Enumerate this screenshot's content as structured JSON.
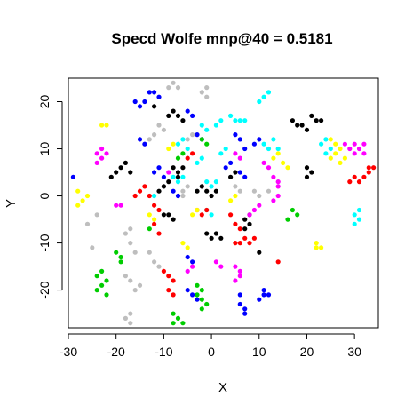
{
  "chart_data": {
    "type": "scatter",
    "title": "Specd Wolfe mnp@40 = 0.5181",
    "xlabel": "X",
    "ylabel": "Y",
    "xlim": [
      -30,
      35
    ],
    "ylim": [
      -28,
      25
    ],
    "xticks": [
      -30,
      -20,
      -10,
      0,
      10,
      20,
      30
    ],
    "yticks": [
      -20,
      -10,
      0,
      10,
      20
    ],
    "xtick_labels": [
      "-30",
      "-20",
      "-10",
      "0",
      "10",
      "20",
      "30"
    ],
    "ytick_labels": [
      "-20",
      "-10",
      "0",
      "10",
      "20"
    ],
    "grid": false,
    "legend": "none",
    "point_shape": "filled-circle",
    "series": [
      {
        "color": "#000000",
        "points": [
          [
            -21,
            4
          ],
          [
            -20,
            5
          ],
          [
            -19,
            6
          ],
          [
            -18,
            7
          ],
          [
            -17,
            5
          ],
          [
            -12,
            19
          ],
          [
            -9,
            17
          ],
          [
            -8,
            18
          ],
          [
            -7,
            17
          ],
          [
            -6,
            16
          ],
          [
            -8,
            6
          ],
          [
            -7,
            5
          ],
          [
            -6,
            6
          ],
          [
            -7,
            4
          ],
          [
            -11,
            1
          ],
          [
            -10,
            2
          ],
          [
            -9,
            3
          ],
          [
            -10,
            -4
          ],
          [
            -9,
            -4
          ],
          [
            -8,
            -5
          ],
          [
            -3,
            1
          ],
          [
            -2,
            2
          ],
          [
            -1,
            1
          ],
          [
            0,
            0
          ],
          [
            1,
            1
          ],
          [
            -1,
            -8
          ],
          [
            0,
            -9
          ],
          [
            1,
            -8
          ],
          [
            2,
            -9
          ],
          [
            4,
            4
          ],
          [
            5,
            5
          ],
          [
            7,
            -5
          ],
          [
            8,
            -4
          ],
          [
            8,
            -6
          ],
          [
            7,
            -7
          ],
          [
            10,
            -12
          ],
          [
            17,
            16
          ],
          [
            18,
            15
          ],
          [
            19,
            15
          ],
          [
            20,
            14
          ],
          [
            21,
            17
          ],
          [
            22,
            16
          ],
          [
            23,
            16
          ],
          [
            20,
            4
          ],
          [
            21,
            5
          ],
          [
            20,
            6
          ]
        ]
      },
      {
        "color": "#BEBEBE",
        "points": [
          [
            -25,
            -11
          ],
          [
            -26,
            -6
          ],
          [
            -24,
            -4
          ],
          [
            -17,
            -7
          ],
          [
            -18,
            -8
          ],
          [
            -17,
            -10
          ],
          [
            -16,
            -12
          ],
          [
            -18,
            -17
          ],
          [
            -17,
            -18
          ],
          [
            -16,
            -20
          ],
          [
            -15,
            -19
          ],
          [
            -17,
            -25
          ],
          [
            -18,
            -26
          ],
          [
            -17,
            -27
          ],
          [
            -9,
            23
          ],
          [
            -8,
            24
          ],
          [
            -7,
            23
          ],
          [
            -2,
            22
          ],
          [
            -1,
            23
          ],
          [
            -1,
            21
          ],
          [
            -11,
            15
          ],
          [
            -12,
            13
          ],
          [
            -10,
            14
          ],
          [
            -14,
            11
          ],
          [
            -13,
            12
          ],
          [
            -5,
            12
          ],
          [
            -4,
            13
          ],
          [
            -6,
            1
          ],
          [
            -5,
            2
          ],
          [
            5,
            2
          ],
          [
            6,
            1
          ],
          [
            -13,
            -12
          ],
          [
            -12,
            -14
          ],
          [
            -11,
            -15
          ],
          [
            -6,
            0
          ],
          [
            9,
            1
          ],
          [
            10,
            0
          ],
          [
            12,
            1
          ]
        ]
      },
      {
        "color": "#0000FF",
        "points": [
          [
            -29,
            4
          ],
          [
            -16,
            20
          ],
          [
            -15,
            19
          ],
          [
            -14,
            20
          ],
          [
            -13,
            22
          ],
          [
            -12,
            22
          ],
          [
            -11,
            21
          ],
          [
            -15,
            12
          ],
          [
            -14,
            11
          ],
          [
            -5,
            18
          ],
          [
            -4,
            17
          ],
          [
            -3,
            13
          ],
          [
            -2,
            12
          ],
          [
            5,
            13
          ],
          [
            6,
            12
          ],
          [
            7,
            10
          ],
          [
            -12,
            5
          ],
          [
            -11,
            6
          ],
          [
            -10,
            4
          ],
          [
            -8,
            1
          ],
          [
            -7,
            0
          ],
          [
            3,
            6
          ],
          [
            4,
            7
          ],
          [
            6,
            5
          ],
          [
            7,
            4
          ],
          [
            -5,
            -13
          ],
          [
            -4,
            -14
          ],
          [
            -5,
            -20
          ],
          [
            -4,
            -21
          ],
          [
            -3,
            -22
          ],
          [
            6,
            -21
          ],
          [
            6,
            -23
          ],
          [
            7,
            -24
          ],
          [
            7,
            -25
          ],
          [
            10,
            -22
          ],
          [
            11,
            -21
          ],
          [
            12,
            -21
          ],
          [
            11,
            -20
          ],
          [
            9,
            11
          ],
          [
            10,
            12
          ]
        ]
      },
      {
        "color": "#00FFFF",
        "points": [
          [
            -7,
            11
          ],
          [
            -6,
            12
          ],
          [
            -5,
            10
          ],
          [
            -2,
            15
          ],
          [
            -1,
            14
          ],
          [
            1,
            15
          ],
          [
            2,
            16
          ],
          [
            4,
            17
          ],
          [
            5,
            16
          ],
          [
            6,
            16
          ],
          [
            7,
            16
          ],
          [
            10,
            20
          ],
          [
            11,
            21
          ],
          [
            12,
            22
          ],
          [
            11,
            11
          ],
          [
            12,
            10
          ],
          [
            13,
            12
          ],
          [
            14,
            10
          ],
          [
            -8,
            4
          ],
          [
            -7,
            3
          ],
          [
            -6,
            4
          ],
          [
            -1,
            3
          ],
          [
            0,
            2
          ],
          [
            1,
            3
          ],
          [
            -1,
            -3
          ],
          [
            0,
            -4
          ],
          [
            -3,
            7
          ],
          [
            -2,
            8
          ],
          [
            2,
            9
          ],
          [
            3,
            10
          ],
          [
            23,
            11
          ],
          [
            24,
            12
          ],
          [
            25,
            10
          ],
          [
            24,
            9
          ],
          [
            30,
            -4
          ],
          [
            31,
            -5
          ],
          [
            30,
            -6
          ],
          [
            31,
            -3
          ],
          [
            -12,
            0
          ]
        ]
      },
      {
        "color": "#00CD00",
        "points": [
          [
            -23,
            -16
          ],
          [
            -24,
            -17
          ],
          [
            -22,
            -18
          ],
          [
            -23,
            -19
          ],
          [
            -24,
            -20
          ],
          [
            -22,
            -21
          ],
          [
            -20,
            -12
          ],
          [
            -19,
            -13
          ],
          [
            -19,
            -14
          ],
          [
            -8,
            -25
          ],
          [
            -7,
            -26
          ],
          [
            -8,
            -27
          ],
          [
            -6,
            -27
          ],
          [
            -3,
            -19
          ],
          [
            -2,
            -20
          ],
          [
            -3,
            -21
          ],
          [
            -2,
            -22
          ],
          [
            -1,
            -23
          ],
          [
            -2,
            -24
          ],
          [
            -2,
            12
          ],
          [
            -1,
            11
          ],
          [
            -7,
            8
          ],
          [
            -6,
            9
          ],
          [
            17,
            -3
          ],
          [
            18,
            -4
          ],
          [
            16,
            -5
          ],
          [
            -13,
            -7
          ]
        ]
      },
      {
        "color": "#FF0000",
        "points": [
          [
            -16,
            0
          ],
          [
            -15,
            1
          ],
          [
            -14,
            2
          ],
          [
            -13,
            0
          ],
          [
            -12,
            -2
          ],
          [
            -11,
            -3
          ],
          [
            -12,
            -6
          ],
          [
            -11,
            -8
          ],
          [
            -10,
            -16
          ],
          [
            -9,
            -17
          ],
          [
            -8,
            -18
          ],
          [
            -9,
            -20
          ],
          [
            -8,
            -21
          ],
          [
            -3,
            -3
          ],
          [
            -2,
            -4
          ],
          [
            -1,
            -3
          ],
          [
            5,
            -6
          ],
          [
            6,
            -7
          ],
          [
            7,
            -9
          ],
          [
            5,
            -10
          ],
          [
            8,
            -10
          ],
          [
            9,
            -9
          ],
          [
            6,
            -10
          ],
          [
            14,
            -14
          ],
          [
            4,
            -4
          ],
          [
            -5,
            8
          ],
          [
            -4,
            9
          ],
          [
            30,
            4
          ],
          [
            31,
            3
          ],
          [
            32,
            4
          ],
          [
            29,
            3
          ],
          [
            33,
            5
          ],
          [
            34,
            6
          ],
          [
            33,
            6
          ]
        ]
      },
      {
        "color": "#FF00FF",
        "points": [
          [
            -23,
            8
          ],
          [
            -24,
            9
          ],
          [
            -23,
            10
          ],
          [
            -22,
            9
          ],
          [
            -24,
            7
          ],
          [
            -20,
            -2
          ],
          [
            -19,
            -2
          ],
          [
            -5,
            -16
          ],
          [
            -4,
            -15
          ],
          [
            1,
            -14
          ],
          [
            2,
            -15
          ],
          [
            5,
            -15
          ],
          [
            6,
            -16
          ],
          [
            6,
            -17
          ],
          [
            5,
            -18
          ],
          [
            9,
            -3
          ],
          [
            10,
            -2
          ],
          [
            8,
            -4
          ],
          [
            13,
            4
          ],
          [
            14,
            3
          ],
          [
            14,
            2
          ],
          [
            14,
            0
          ],
          [
            13,
            -1
          ],
          [
            11,
            7
          ],
          [
            12,
            6
          ],
          [
            28,
            11
          ],
          [
            29,
            10
          ],
          [
            30,
            11
          ],
          [
            31,
            10
          ],
          [
            32,
            11
          ],
          [
            32,
            9
          ],
          [
            30,
            9
          ],
          [
            5,
            9
          ],
          [
            6,
            8
          ],
          [
            -9,
            5
          ]
        ]
      },
      {
        "color": "#FFFF00",
        "points": [
          [
            -28,
            -2
          ],
          [
            -27,
            -1
          ],
          [
            -26,
            0
          ],
          [
            -28,
            1
          ],
          [
            -23,
            15
          ],
          [
            -22,
            15
          ],
          [
            -6,
            -10
          ],
          [
            -5,
            -11
          ],
          [
            -3,
            -3
          ],
          [
            -4,
            -4
          ],
          [
            4,
            -1
          ],
          [
            5,
            0
          ],
          [
            13,
            8
          ],
          [
            14,
            9
          ],
          [
            15,
            7
          ],
          [
            16,
            6
          ],
          [
            25,
            12
          ],
          [
            26,
            11
          ],
          [
            27,
            10
          ],
          [
            26,
            9
          ],
          [
            25,
            8
          ],
          [
            27,
            7
          ],
          [
            28,
            8
          ],
          [
            22,
            -10
          ],
          [
            23,
            -11
          ],
          [
            22,
            -11
          ],
          [
            -9,
            10
          ],
          [
            -8,
            11
          ],
          [
            -13,
            -4
          ],
          [
            -12,
            -5
          ]
        ]
      }
    ]
  }
}
